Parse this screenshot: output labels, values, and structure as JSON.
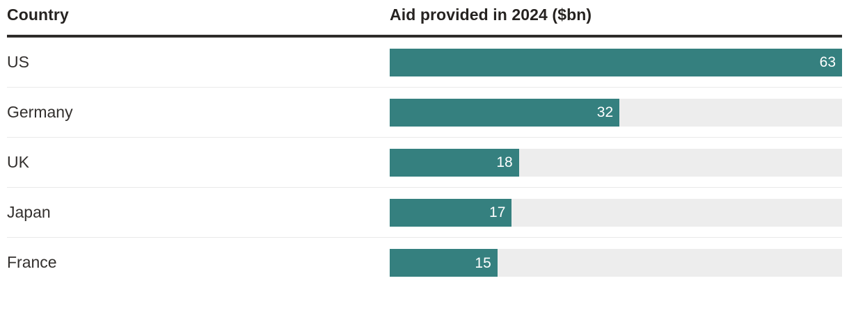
{
  "table": {
    "columns": [
      "Country",
      "Aid provided in 2024 ($bn)"
    ]
  },
  "chart_data": {
    "type": "bar",
    "orientation": "horizontal",
    "title": "Aid provided in 2024 ($bn)",
    "categories": [
      "US",
      "Germany",
      "UK",
      "Japan",
      "France"
    ],
    "values": [
      63,
      32,
      18,
      17,
      15
    ],
    "xlabel": "",
    "ylabel": "Country",
    "xlim": [
      0,
      63
    ],
    "value_labels_shown": true,
    "legend": "none",
    "grid": "off",
    "colors": {
      "bar": "#35807f",
      "track": "#ededed",
      "value_text": "#ffffff",
      "header_rule": "#2e2c2a",
      "row_separator": "#e9e9e9",
      "label_text": "#33302e",
      "header_text": "#262321",
      "background": "#ffffff"
    }
  }
}
